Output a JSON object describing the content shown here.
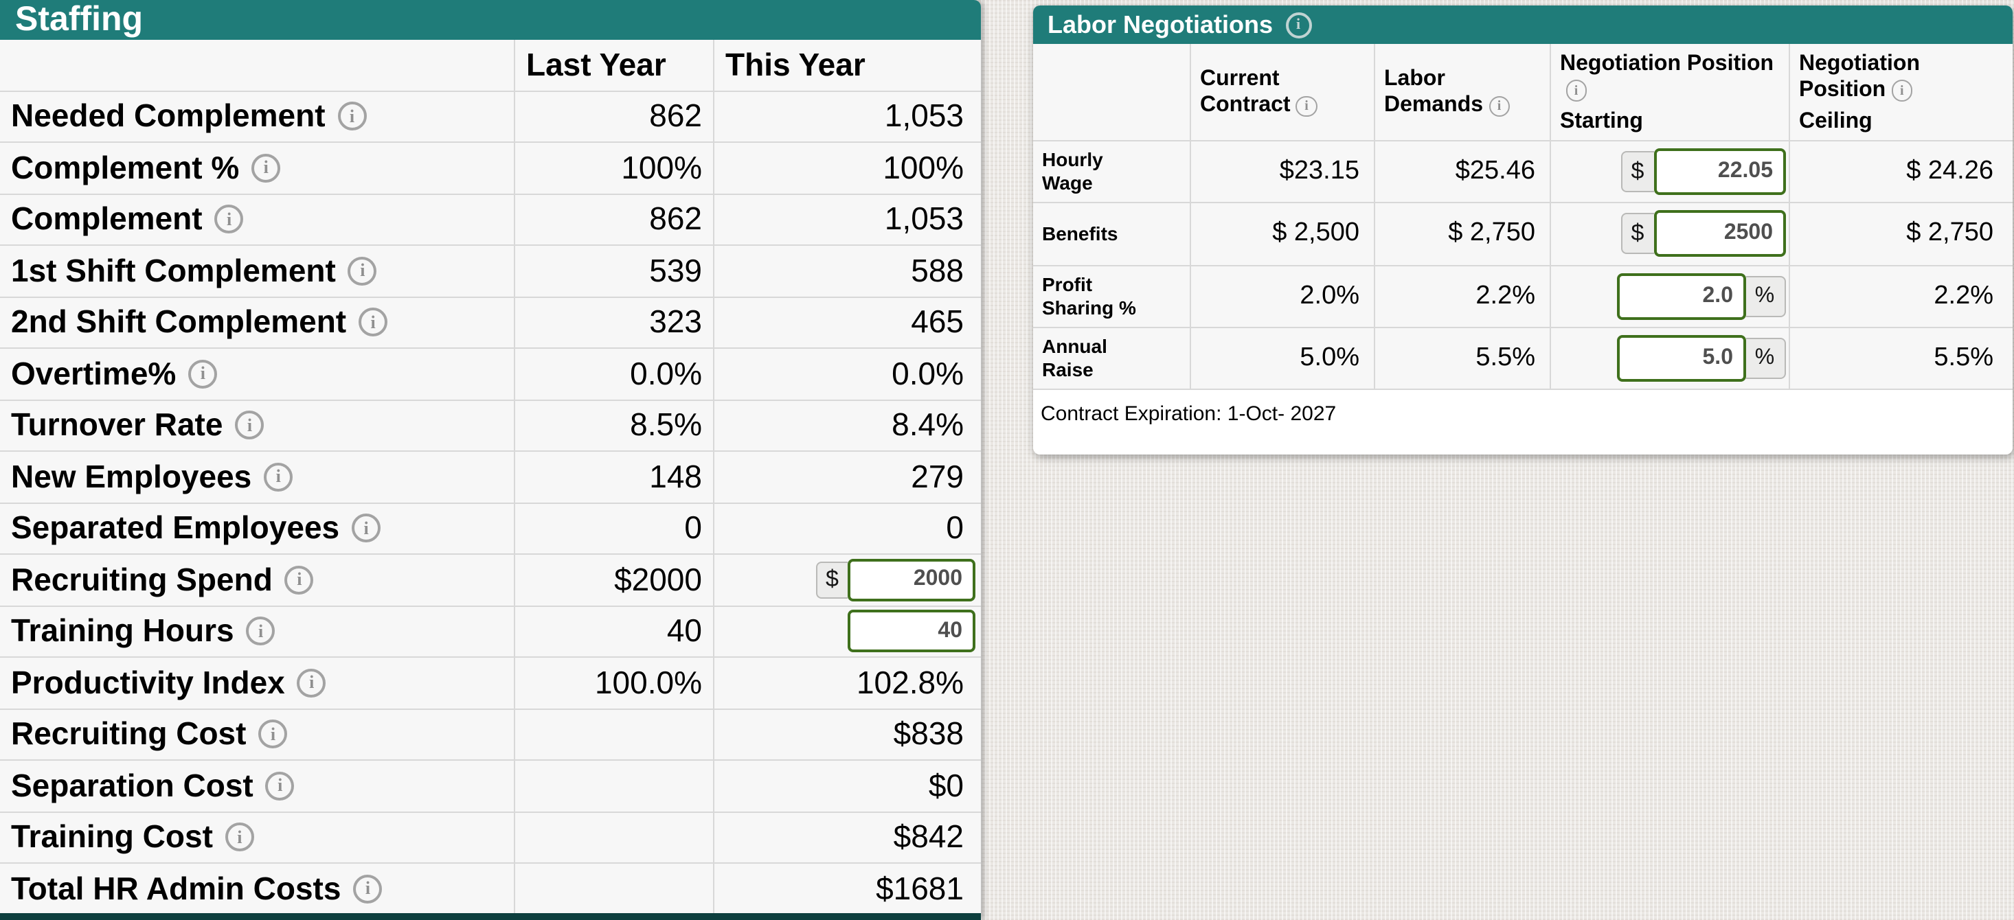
{
  "colors": {
    "header_teal": "#1f7c79",
    "row_background": "#f7f7f7",
    "grid_border": "#d8d8d8",
    "input_border_green": "#3f701c",
    "input_text_gray": "#4f4f4f",
    "affix_background": "#ececeb",
    "info_icon_gray": "#9e9e9e",
    "footer_white": "#ffffff",
    "bottom_section_edge": "#0d3f3e"
  },
  "staffing": {
    "title": "Staffing",
    "columns": [
      "Last Year",
      "This Year"
    ],
    "rows": [
      {
        "label": "Needed Complement",
        "last_year": "862",
        "this_year": "1,053"
      },
      {
        "label": "Complement %",
        "last_year": "100%",
        "this_year": "100%"
      },
      {
        "label": "Complement",
        "last_year": "862",
        "this_year": "1,053"
      },
      {
        "label": "1st Shift Complement",
        "last_year": "539",
        "this_year": "588"
      },
      {
        "label": "2nd Shift Complement",
        "last_year": "323",
        "this_year": "465"
      },
      {
        "label": "Overtime%",
        "last_year": "0.0%",
        "this_year": "0.0%"
      },
      {
        "label": "Turnover Rate",
        "last_year": "8.5%",
        "this_year": "8.4%"
      },
      {
        "label": "New Employees",
        "last_year": "148",
        "this_year": "279"
      },
      {
        "label": "Separated Employees",
        "last_year": "0",
        "this_year": "0"
      },
      {
        "label": "Recruiting Spend",
        "last_year": "$2000",
        "input": {
          "prefix": "$",
          "value": "2000"
        }
      },
      {
        "label": "Training Hours",
        "last_year": "40",
        "input": {
          "value": "40"
        }
      },
      {
        "label": "Productivity Index",
        "last_year": "100.0%",
        "this_year": "102.8%"
      },
      {
        "label": "Recruiting Cost",
        "last_year": "",
        "this_year": "$838"
      },
      {
        "label": "Separation Cost",
        "last_year": "",
        "this_year": "$0"
      },
      {
        "label": "Training Cost",
        "last_year": "",
        "this_year": "$842"
      },
      {
        "label": "Total HR Admin Costs",
        "last_year": "",
        "this_year": "$1681"
      }
    ]
  },
  "labor": {
    "title": "Labor Negotiations",
    "columns": [
      {
        "title": "Current Contract",
        "subtitle": ""
      },
      {
        "title": "Labor Demands",
        "subtitle": ""
      },
      {
        "title": "Negotiation Position",
        "subtitle": "Starting"
      },
      {
        "title": "Negotiation Position",
        "subtitle": "Ceiling"
      }
    ],
    "rows": [
      {
        "label": "Hourly Wage",
        "current_contract": "$23.15",
        "labor_demands": "$25.46",
        "starting_input": {
          "prefix": "$",
          "value": "22.05"
        },
        "ceiling": "$ 24.26"
      },
      {
        "label": "Benefits",
        "current_contract": "$ 2,500",
        "labor_demands": "$ 2,750",
        "starting_input": {
          "prefix": "$",
          "value": "2500"
        },
        "ceiling": "$ 2,750"
      },
      {
        "label": "Profit Sharing %",
        "current_contract": "2.0%",
        "labor_demands": "2.2%",
        "starting_input": {
          "value": "2.0",
          "suffix": "%"
        },
        "ceiling": "2.2%"
      },
      {
        "label": "Annual Raise",
        "current_contract": "5.0%",
        "labor_demands": "5.5%",
        "starting_input": {
          "value": "5.0",
          "suffix": "%"
        },
        "ceiling": "5.5%"
      }
    ],
    "footer_note": "Contract Expiration: 1-Oct- 2027"
  }
}
